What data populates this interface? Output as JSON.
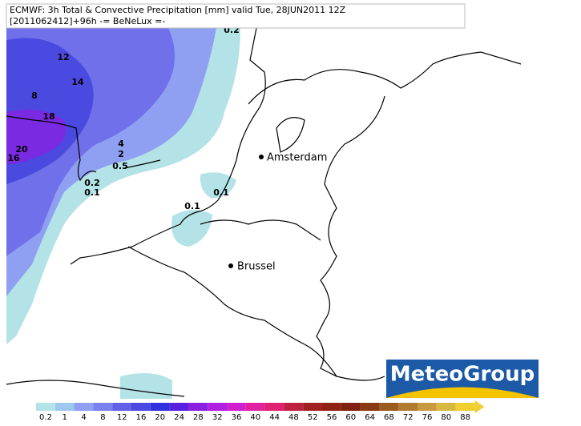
{
  "header": {
    "line1": "ECMWF: 3h Total & Convective Precipitation [mm] valid Tue, 28JUN2011 12Z",
    "line2": "[2011062412]+96h  -= BeNeLux =-"
  },
  "contour_labels": [
    "0.2",
    "12",
    "14",
    "8",
    "18",
    "20",
    "16",
    "4",
    "2",
    "0.5",
    "0.2",
    "0.1",
    "0.1",
    "0.1"
  ],
  "cities": [
    "Amsterdam",
    "Brussel"
  ],
  "logo": "MeteoGroup",
  "colorbar": {
    "labels": [
      0.2,
      1,
      4,
      8,
      12,
      16,
      20,
      24,
      28,
      32,
      36,
      40,
      44,
      48,
      52,
      56,
      60,
      64,
      68,
      72,
      76,
      80,
      88
    ]
  }
}
